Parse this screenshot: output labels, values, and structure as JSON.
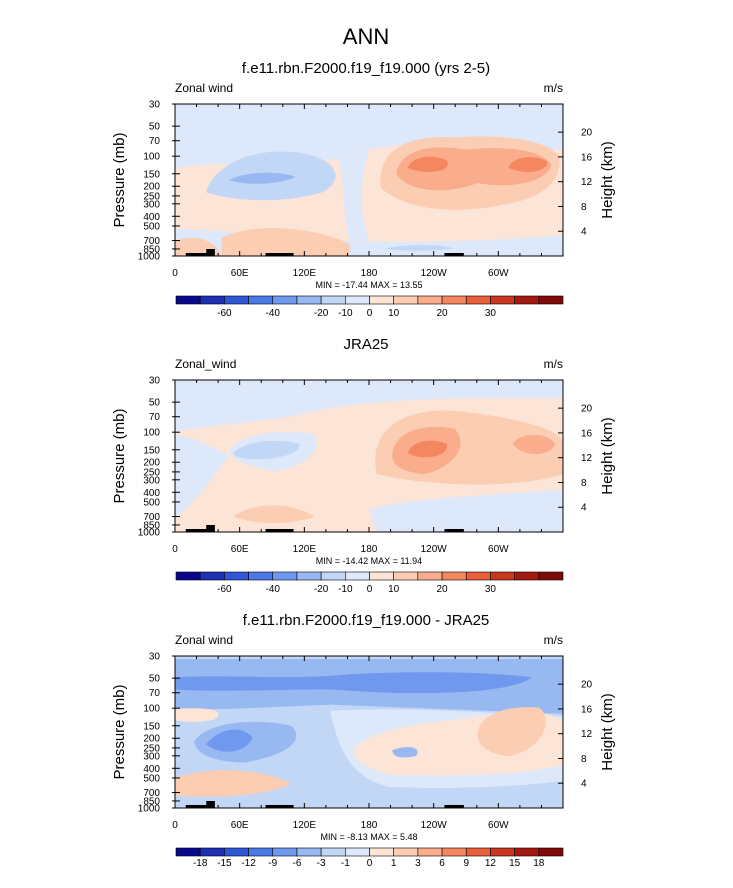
{
  "title": "ANN",
  "chart_data": [
    {
      "type": "heatmap",
      "title": "f.e11.rbn.F2000.f19_f19.000 (yrs 2-5)",
      "corner_left": "Zonal wind",
      "corner_right": "m/s",
      "ylabel": "Pressure (mb)",
      "ylabel_right": "Height (km)",
      "pressure_ticks": [
        "30",
        "50",
        "70",
        "100",
        "150",
        "200",
        "250",
        "300",
        "400",
        "500",
        "700",
        "850",
        "1000"
      ],
      "height_ticks": [
        "20",
        "16",
        "12",
        "8",
        "4"
      ],
      "xtick_labels": [
        "0",
        "60E",
        "120E",
        "180",
        "120W",
        "60W"
      ],
      "stats": "MIN = -17.44  MAX =  13.55",
      "colorbar": {
        "levels": [
          "-60",
          "-40",
          "-20",
          "-10",
          "0",
          "10",
          "20",
          "30"
        ],
        "colors": [
          "#08088c",
          "#1d2fb3",
          "#2f56d6",
          "#4b7ae8",
          "#6f98ee",
          "#98b8f2",
          "#c2d6f6",
          "#dde9fa",
          "#fce5d6",
          "#fbcdb3",
          "#f9ad8c",
          "#f4875f",
          "#e85f3a",
          "#c9381f",
          "#a51a10",
          "#7e0b08"
        ]
      },
      "fields": {
        "background": "#dde9fa",
        "trop_band": "#fce5d6",
        "low_westerlies": "#fbcdb3",
        "easterly_pool": "#c2d6f6",
        "easterly_core": "#98b8f2",
        "jet_outer": "#fbcdb3",
        "jet_mid": "#f9ad8c",
        "jet_core": "#f4875f"
      }
    },
    {
      "type": "heatmap",
      "title": "JRA25",
      "corner_left": "Zonal_wind",
      "corner_right": "m/s",
      "ylabel": "Pressure (mb)",
      "ylabel_right": "Height (km)",
      "pressure_ticks": [
        "30",
        "50",
        "70",
        "100",
        "150",
        "200",
        "250",
        "300",
        "400",
        "500",
        "700",
        "850",
        "1000"
      ],
      "height_ticks": [
        "20",
        "16",
        "12",
        "8",
        "4"
      ],
      "xtick_labels": [
        "0",
        "60E",
        "120E",
        "180",
        "120W",
        "60W"
      ],
      "stats": "MIN = -14.42  MAX =  11.94",
      "colorbar": {
        "levels": [
          "-60",
          "-40",
          "-20",
          "-10",
          "0",
          "10",
          "20",
          "30"
        ],
        "colors": [
          "#08088c",
          "#1d2fb3",
          "#2f56d6",
          "#4b7ae8",
          "#6f98ee",
          "#98b8f2",
          "#c2d6f6",
          "#dde9fa",
          "#fce5d6",
          "#fbcdb3",
          "#f9ad8c",
          "#f4875f",
          "#e85f3a",
          "#c9381f",
          "#a51a10",
          "#7e0b08"
        ]
      },
      "fields": {
        "background": "#fce5d6",
        "stratosphere": "#dde9fa",
        "easterly_pool": "#dde9fa",
        "easterly_core": "#c2d6f6",
        "low_westerlies": "#fbcdb3",
        "jet_outer": "#fbcdb3",
        "jet_mid": "#f9ad8c",
        "jet_core": "#f4875f"
      }
    },
    {
      "type": "heatmap",
      "title": "f.e11.rbn.F2000.f19_f19.000 - JRA25",
      "corner_left": "Zonal wind",
      "corner_right": "m/s",
      "ylabel": "Pressure (mb)",
      "ylabel_right": "Height (km)",
      "pressure_ticks": [
        "30",
        "50",
        "70",
        "100",
        "150",
        "200",
        "250",
        "300",
        "400",
        "500",
        "700",
        "850",
        "1000"
      ],
      "height_ticks": [
        "20",
        "16",
        "12",
        "8",
        "4"
      ],
      "xtick_labels": [
        "0",
        "60E",
        "120E",
        "180",
        "120W",
        "60W"
      ],
      "stats": "MIN = -8.13  MAX =  5.48",
      "colorbar": {
        "levels": [
          "-18",
          "-15",
          "-12",
          "-9",
          "-6",
          "-3",
          "-1",
          "0",
          "1",
          "3",
          "6",
          "9",
          "12",
          "15",
          "18"
        ],
        "colors": [
          "#08088c",
          "#1d2fb3",
          "#2f56d6",
          "#4b7ae8",
          "#6f98ee",
          "#98b8f2",
          "#c2d6f6",
          "#dde9fa",
          "#fce5d6",
          "#fbcdb3",
          "#f9ad8c",
          "#f4875f",
          "#e85f3a",
          "#c9381f",
          "#a51a10",
          "#7e0b08"
        ]
      },
      "fields": {
        "background": "#c2d6f6",
        "strat_band": "#98b8f2",
        "strat_core": "#6f98ee",
        "neg_patch": "#98b8f2",
        "neg_core": "#6f98ee",
        "light_band": "#dde9fa",
        "pos_light": "#fce5d6",
        "pos_mid": "#fbcdb3",
        "pos_strong": "#f9ad8c"
      }
    }
  ]
}
